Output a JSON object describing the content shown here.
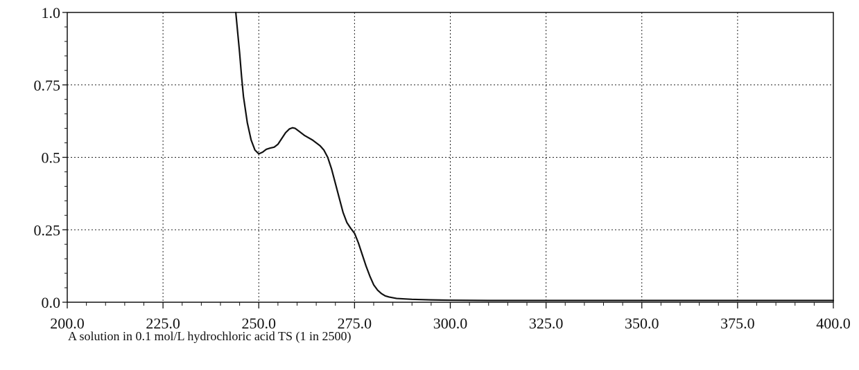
{
  "chart_data": {
    "type": "line",
    "caption": "A solution in 0.1 mol/L hydrochloric acid TS (1 in 2500)",
    "xlabel": "",
    "ylabel": "",
    "xlim": [
      200,
      400
    ],
    "ylim": [
      0,
      1
    ],
    "x_ticks": [
      "200.0",
      "225.0",
      "250.0",
      "275.0",
      "300.0",
      "325.0",
      "350.0",
      "375.0",
      "400.0"
    ],
    "y_ticks": [
      "0.0",
      "0.25",
      "0.5",
      "0.75",
      "1.0"
    ],
    "grid": true,
    "line_color": "#111111",
    "series": [
      {
        "x": [
          244.0,
          244.5,
          245.0,
          245.5,
          246.0,
          247.0,
          248.0,
          249.0,
          250.0,
          251.0,
          252.0,
          253.0,
          254.0,
          255.0,
          256.0,
          257.0,
          258.0,
          258.8,
          259.5,
          260.5,
          262.0,
          264.0,
          266.0,
          267.0,
          268.0,
          269.0,
          270.0,
          271.0,
          272.0,
          273.0,
          274.0,
          275.0,
          276.0,
          277.0,
          278.0,
          279.0,
          280.0,
          281.0,
          282.0,
          283.0,
          284.0,
          286.0,
          290.0,
          295.0,
          300.0,
          310.0,
          325.0,
          350.0,
          375.0,
          400.0
        ],
        "y": [
          1.0,
          0.93,
          0.86,
          0.78,
          0.71,
          0.62,
          0.56,
          0.525,
          0.512,
          0.518,
          0.528,
          0.532,
          0.535,
          0.545,
          0.565,
          0.585,
          0.598,
          0.602,
          0.6,
          0.59,
          0.575,
          0.56,
          0.54,
          0.525,
          0.5,
          0.46,
          0.41,
          0.36,
          0.31,
          0.275,
          0.255,
          0.238,
          0.205,
          0.165,
          0.125,
          0.09,
          0.06,
          0.042,
          0.03,
          0.022,
          0.018,
          0.013,
          0.01,
          0.008,
          0.007,
          0.006,
          0.006,
          0.006,
          0.006,
          0.006
        ]
      }
    ]
  }
}
